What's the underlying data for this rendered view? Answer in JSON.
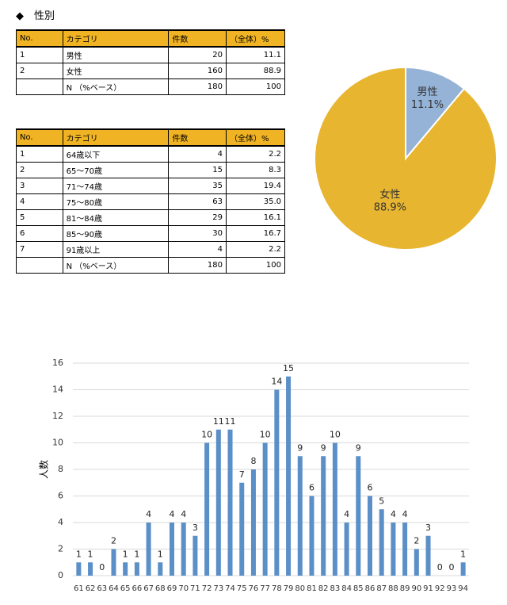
{
  "heading": "◆　性別",
  "table1": {
    "header": [
      "No.",
      "カテゴリ",
      "件数",
      "（全体）%"
    ],
    "rows": [
      [
        "1",
        "男性",
        "20",
        "11.1"
      ],
      [
        "2",
        "女性",
        "160",
        "88.9"
      ],
      [
        null,
        "N （%ベース）",
        "180",
        "100"
      ]
    ]
  },
  "table2": {
    "header": [
      "No.",
      "カテゴリ",
      "件数",
      "（全体）%"
    ],
    "rows": [
      [
        "1",
        "64歳以下",
        "4",
        "2.2"
      ],
      [
        "2",
        "65～70歳",
        "15",
        "8.3"
      ],
      [
        "3",
        "71～74歳",
        "35",
        "19.4"
      ],
      [
        "4",
        "75～80歳",
        "63",
        "35.0"
      ],
      [
        "5",
        "81～84歳",
        "29",
        "16.1"
      ],
      [
        "6",
        "85～90歳",
        "30",
        "16.7"
      ],
      [
        "7",
        "91歳以上",
        "4",
        "2.2"
      ],
      [
        null,
        "N （%ベース）",
        "180",
        "100"
      ]
    ]
  },
  "chart_data": [
    {
      "type": "pie",
      "categories": [
        "男性",
        "女性"
      ],
      "values": [
        11.1,
        88.9
      ],
      "value_labels": [
        "11.1%",
        "88.9%"
      ],
      "colors": [
        "#95b3d7",
        "#e8b530"
      ]
    },
    {
      "type": "bar",
      "y_label": "人数",
      "categories": [
        "61",
        "62",
        "63",
        "64",
        "65",
        "66",
        "67",
        "68",
        "69",
        "70",
        "71",
        "72",
        "73",
        "74",
        "75",
        "76",
        "77",
        "78",
        "79",
        "80",
        "81",
        "82",
        "83",
        "84",
        "85",
        "86",
        "87",
        "88",
        "89",
        "90",
        "91",
        "92",
        "93",
        "94"
      ],
      "values": [
        1,
        1,
        0,
        2,
        1,
        1,
        4,
        1,
        4,
        4,
        3,
        10,
        11,
        11,
        7,
        8,
        10,
        14,
        15,
        9,
        6,
        9,
        10,
        4,
        9,
        6,
        5,
        4,
        4,
        2,
        3,
        0,
        0,
        1
      ],
      "ylim": [
        0,
        16
      ],
      "yticks": [
        0,
        2,
        4,
        6,
        8,
        10,
        12,
        14,
        16
      ],
      "grid": true,
      "color": "#5b8fc7"
    }
  ]
}
